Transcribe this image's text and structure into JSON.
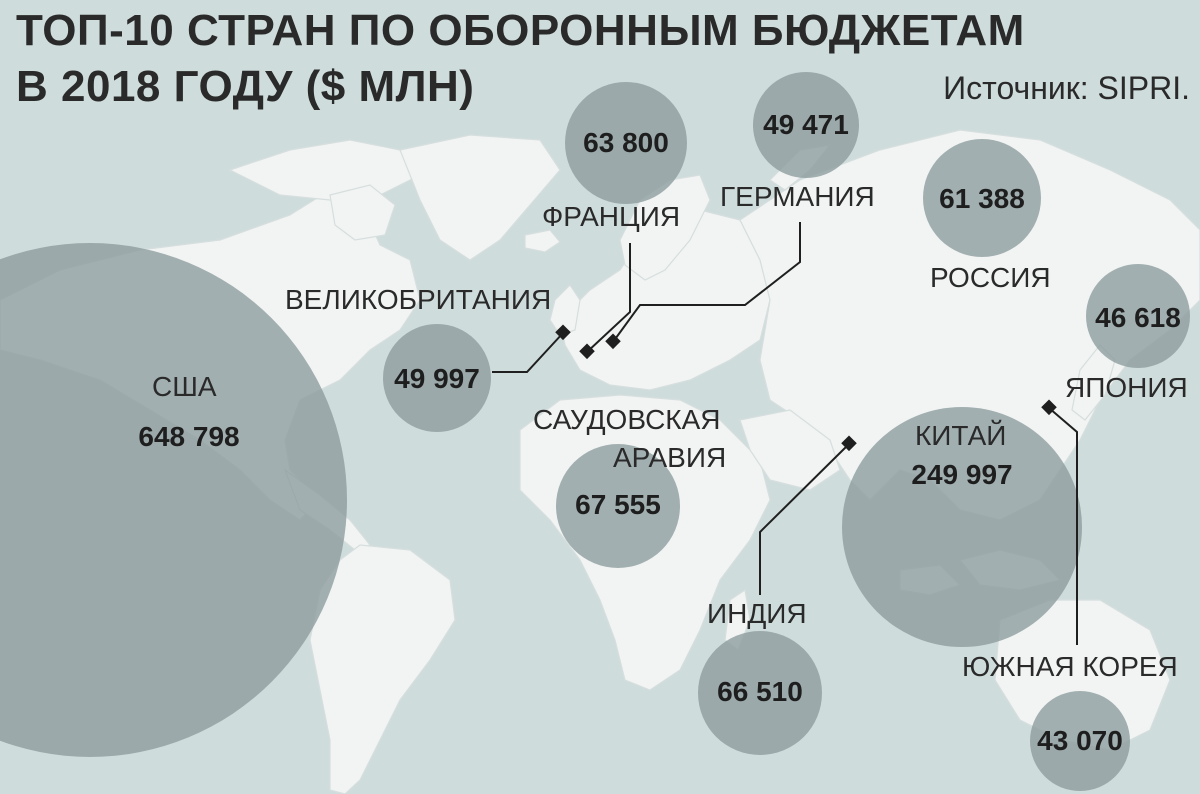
{
  "title_line1": "ТОП-10 СТРАН ПО ОБОРОННЫМ БЮДЖЕТАМ",
  "title_line2": "В 2018 ГОДУ ($ МЛН)",
  "source": "Источник: SIPRI.",
  "colors": {
    "ocean": "#cfdcdc",
    "land": "#f2f4f3",
    "bubble": "#8c9b9c",
    "marker": "#1f1f1f",
    "text": "#2a2a2a"
  },
  "countries": [
    {
      "id": "usa",
      "label": "США",
      "value": "648 798",
      "budget": 648798
    },
    {
      "id": "china",
      "label": "КИТАЙ",
      "value": "249 997",
      "budget": 249997
    },
    {
      "id": "saudi",
      "label": "САУДОВСКАЯ\nАРАВИЯ",
      "label_lines": [
        "САУДОВСКАЯ",
        "АРАВИЯ"
      ],
      "value": "67 555",
      "budget": 67555
    },
    {
      "id": "india",
      "label": "ИНДИЯ",
      "value": "66 510",
      "budget": 66510
    },
    {
      "id": "france",
      "label": "ФРАНЦИЯ",
      "value": "63 800",
      "budget": 63800
    },
    {
      "id": "russia",
      "label": "РОССИЯ",
      "value": "61 388",
      "budget": 61388
    },
    {
      "id": "uk",
      "label": "ВЕЛИКОБРИТАНИЯ",
      "value": "49 997",
      "budget": 49997
    },
    {
      "id": "germany",
      "label": "ГЕРМАНИЯ",
      "value": "49 471",
      "budget": 49471
    },
    {
      "id": "japan",
      "label": "ЯПОНИЯ",
      "value": "46 618",
      "budget": 46618
    },
    {
      "id": "korea",
      "label": "ЮЖНАЯ КОРЕЯ",
      "value": "43 070",
      "budget": 43070
    }
  ]
}
